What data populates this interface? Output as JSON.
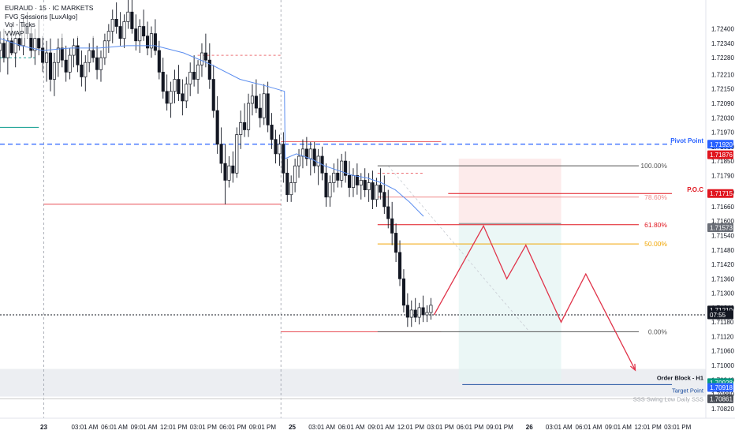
{
  "legend": {
    "symbol": "EURAUD · 15 · IC MARKETS",
    "indicators": [
      "FVG Sessions [LuxAlgo]",
      "Vol - Ticks",
      "VWAP"
    ]
  },
  "chart_data": {
    "type": "candlestick",
    "ylim": [
      1.7078,
      1.7252
    ],
    "xlim": [
      0,
      100
    ],
    "price_ticks": [
      "1.72400",
      "1.72340",
      "1.72280",
      "1.72210",
      "1.72150",
      "1.72090",
      "1.72030",
      "1.71970",
      "1.71910",
      "1.71850",
      "1.71790",
      "1.71720",
      "1.71660",
      "1.71600",
      "1.71540",
      "1.71480",
      "1.71420",
      "1.71360",
      "1.71300",
      "1.71240",
      "1.71180",
      "1.71120",
      "1.71060",
      "1.71000",
      "1.70940",
      "1.70880",
      "1.70820"
    ],
    "time_labels": [
      {
        "x": 6.2,
        "label": "23",
        "bold": true
      },
      {
        "x": 12,
        "label": "03:01 AM"
      },
      {
        "x": 16.2,
        "label": "06:01 AM"
      },
      {
        "x": 20.4,
        "label": "09:01 AM"
      },
      {
        "x": 24.6,
        "label": "12:01 PM"
      },
      {
        "x": 28.8,
        "label": "03:01 PM"
      },
      {
        "x": 33,
        "label": "06:01 PM"
      },
      {
        "x": 37.2,
        "label": "09:01 PM"
      },
      {
        "x": 41.4,
        "label": "25",
        "bold": true
      },
      {
        "x": 45.6,
        "label": "03:01 AM"
      },
      {
        "x": 49.8,
        "label": "06:01 AM"
      },
      {
        "x": 54,
        "label": "09:01 AM"
      },
      {
        "x": 58.2,
        "label": "12:01 PM"
      },
      {
        "x": 62.4,
        "label": "03:01 PM"
      },
      {
        "x": 66.6,
        "label": "06:01 PM"
      },
      {
        "x": 70.8,
        "label": "09:01 PM"
      },
      {
        "x": 75,
        "label": "26",
        "bold": true
      },
      {
        "x": 79.2,
        "label": "03:01 AM"
      },
      {
        "x": 83.4,
        "label": "06:01 AM"
      },
      {
        "x": 87.6,
        "label": "09:01 AM"
      },
      {
        "x": 91.8,
        "label": "12:01 PM"
      },
      {
        "x": 96,
        "label": "03:01 PM"
      }
    ],
    "candles": [
      [
        0,
        1.7231,
        1.7239,
        1.7222,
        1.7234
      ],
      [
        0.55,
        1.7234,
        1.724,
        1.7226,
        1.7228
      ],
      [
        1.1,
        1.7228,
        1.7238,
        1.7221,
        1.7235
      ],
      [
        1.65,
        1.7235,
        1.7241,
        1.7229,
        1.723
      ],
      [
        2.2,
        1.723,
        1.7239,
        1.7224,
        1.7236
      ],
      [
        2.75,
        1.7236,
        1.7244,
        1.7231,
        1.7233
      ],
      [
        3.3,
        1.7233,
        1.7245,
        1.7229,
        1.7241
      ],
      [
        3.85,
        1.7241,
        1.7247,
        1.7236,
        1.7238
      ],
      [
        4.4,
        1.7238,
        1.7242,
        1.7228,
        1.7231
      ],
      [
        4.95,
        1.7231,
        1.724,
        1.7225,
        1.7236
      ],
      [
        5.5,
        1.7236,
        1.7244,
        1.7229,
        1.7232
      ],
      [
        6.05,
        1.7232,
        1.7237,
        1.7222,
        1.7226
      ],
      [
        6.6,
        1.7226,
        1.7235,
        1.7218,
        1.723
      ],
      [
        7.15,
        1.723,
        1.7236,
        1.7214,
        1.7219
      ],
      [
        7.7,
        1.7219,
        1.723,
        1.7212,
        1.7226
      ],
      [
        8.25,
        1.7226,
        1.7236,
        1.722,
        1.7232
      ],
      [
        8.8,
        1.7232,
        1.7238,
        1.7224,
        1.7227
      ],
      [
        9.35,
        1.7227,
        1.7233,
        1.7218,
        1.7222
      ],
      [
        9.9,
        1.7222,
        1.7232,
        1.7219,
        1.7229
      ],
      [
        10.45,
        1.7229,
        1.7236,
        1.7224,
        1.7233
      ],
      [
        11,
        1.7233,
        1.7237,
        1.7222,
        1.7225
      ],
      [
        11.55,
        1.7225,
        1.7231,
        1.7216,
        1.722
      ],
      [
        12.1,
        1.722,
        1.7229,
        1.7214,
        1.7226
      ],
      [
        12.65,
        1.7226,
        1.7234,
        1.7222,
        1.7231
      ],
      [
        13.2,
        1.7231,
        1.7237,
        1.7226,
        1.7228
      ],
      [
        13.75,
        1.7228,
        1.7233,
        1.7219,
        1.7223
      ],
      [
        14.3,
        1.7223,
        1.7231,
        1.7218,
        1.7228
      ],
      [
        14.85,
        1.7228,
        1.7238,
        1.7225,
        1.7235
      ],
      [
        15.4,
        1.7235,
        1.7242,
        1.723,
        1.7239
      ],
      [
        15.95,
        1.7239,
        1.7248,
        1.7234,
        1.7244
      ],
      [
        16.5,
        1.7244,
        1.7251,
        1.7238,
        1.7241
      ],
      [
        17.05,
        1.7241,
        1.7247,
        1.7233,
        1.7236
      ],
      [
        17.6,
        1.7236,
        1.7246,
        1.7232,
        1.7243
      ],
      [
        18.15,
        1.7243,
        1.7252,
        1.724,
        1.7247
      ],
      [
        18.7,
        1.7247,
        1.7252,
        1.7238,
        1.724
      ],
      [
        19.25,
        1.724,
        1.7246,
        1.7231,
        1.7235
      ],
      [
        19.8,
        1.7235,
        1.7244,
        1.723,
        1.7241
      ],
      [
        20.35,
        1.7241,
        1.7248,
        1.7235,
        1.7237
      ],
      [
        20.9,
        1.7237,
        1.7243,
        1.7229,
        1.7232
      ],
      [
        21.45,
        1.7232,
        1.7241,
        1.7228,
        1.7238
      ],
      [
        22,
        1.7238,
        1.7244,
        1.7229,
        1.7231
      ],
      [
        22.55,
        1.7231,
        1.7235,
        1.7219,
        1.7222
      ],
      [
        23.1,
        1.7222,
        1.7228,
        1.7211,
        1.7214
      ],
      [
        23.65,
        1.7214,
        1.7221,
        1.7206,
        1.7209
      ],
      [
        24.2,
        1.7209,
        1.7218,
        1.7203,
        1.7214
      ],
      [
        24.75,
        1.7214,
        1.7223,
        1.7209,
        1.7219
      ],
      [
        25.3,
        1.7219,
        1.7225,
        1.721,
        1.7213
      ],
      [
        25.85,
        1.7213,
        1.7219,
        1.7204,
        1.721
      ],
      [
        26.4,
        1.721,
        1.722,
        1.7207,
        1.7217
      ],
      [
        26.95,
        1.7217,
        1.7226,
        1.7212,
        1.7222
      ],
      [
        27.5,
        1.7222,
        1.7229,
        1.7216,
        1.7219
      ],
      [
        28.05,
        1.7219,
        1.7227,
        1.7213,
        1.7225
      ],
      [
        28.6,
        1.7225,
        1.7234,
        1.722,
        1.723
      ],
      [
        29.15,
        1.723,
        1.7238,
        1.7224,
        1.7227
      ],
      [
        29.7,
        1.7227,
        1.7234,
        1.7215,
        1.7219
      ],
      [
        30.25,
        1.7219,
        1.7225,
        1.7203,
        1.7206
      ],
      [
        30.8,
        1.7206,
        1.7212,
        1.7188,
        1.7192
      ],
      [
        31.35,
        1.7192,
        1.7199,
        1.718,
        1.7184
      ],
      [
        31.9,
        1.7184,
        1.7192,
        1.7167,
        1.7177
      ],
      [
        32.45,
        1.7177,
        1.7187,
        1.7174,
        1.7183
      ],
      [
        33,
        1.7183,
        1.7189,
        1.7176,
        1.718
      ],
      [
        33.55,
        1.718,
        1.7199,
        1.7178,
        1.7196
      ],
      [
        34.1,
        1.7196,
        1.7206,
        1.719,
        1.7201
      ],
      [
        34.65,
        1.7201,
        1.7209,
        1.7195,
        1.7198
      ],
      [
        35.2,
        1.7198,
        1.7213,
        1.7195,
        1.7209
      ],
      [
        35.75,
        1.7209,
        1.7217,
        1.7204,
        1.7212
      ],
      [
        36.3,
        1.7212,
        1.7219,
        1.7205,
        1.7207
      ],
      [
        36.85,
        1.7207,
        1.7213,
        1.7199,
        1.7203
      ],
      [
        37.4,
        1.7203,
        1.7217,
        1.72,
        1.7213
      ],
      [
        37.95,
        1.7213,
        1.7218,
        1.7197,
        1.72
      ],
      [
        38.5,
        1.72,
        1.7205,
        1.719,
        1.7194
      ],
      [
        39.05,
        1.7194,
        1.7198,
        1.7184,
        1.7188
      ],
      [
        39.6,
        1.7188,
        1.7196,
        1.7183,
        1.7192
      ],
      [
        40.15,
        1.7192,
        1.7197,
        1.7176,
        1.718
      ],
      [
        40.7,
        1.718,
        1.7186,
        1.7168,
        1.7171
      ],
      [
        41.25,
        1.7171,
        1.7179,
        1.7168,
        1.7176
      ],
      [
        41.8,
        1.7176,
        1.7186,
        1.7172,
        1.7183
      ],
      [
        42.35,
        1.7183,
        1.719,
        1.7178,
        1.7187
      ],
      [
        42.9,
        1.7187,
        1.7194,
        1.7182,
        1.719
      ],
      [
        43.45,
        1.719,
        1.7195,
        1.7183,
        1.7186
      ],
      [
        44,
        1.7186,
        1.7193,
        1.7179,
        1.719
      ],
      [
        44.55,
        1.719,
        1.7193,
        1.718,
        1.7183
      ],
      [
        45.1,
        1.7183,
        1.719,
        1.7175,
        1.7187
      ],
      [
        45.65,
        1.7187,
        1.7191,
        1.7177,
        1.718
      ],
      [
        46.2,
        1.718,
        1.7184,
        1.7166,
        1.717
      ],
      [
        46.75,
        1.717,
        1.7179,
        1.7166,
        1.7176
      ],
      [
        47.3,
        1.7176,
        1.7184,
        1.7172,
        1.718
      ],
      [
        47.85,
        1.718,
        1.7186,
        1.7174,
        1.7177
      ],
      [
        48.4,
        1.7177,
        1.7188,
        1.7174,
        1.7185
      ],
      [
        48.95,
        1.7185,
        1.7189,
        1.7176,
        1.7179
      ],
      [
        49.5,
        1.7179,
        1.7185,
        1.717,
        1.7174
      ],
      [
        50.05,
        1.7174,
        1.7182,
        1.717,
        1.7179
      ],
      [
        50.6,
        1.7179,
        1.7184,
        1.7171,
        1.7175
      ],
      [
        51.15,
        1.7175,
        1.718,
        1.7169,
        1.7177
      ],
      [
        51.7,
        1.7177,
        1.7182,
        1.717,
        1.7173
      ],
      [
        52.25,
        1.7173,
        1.718,
        1.7168,
        1.7176
      ],
      [
        52.8,
        1.7176,
        1.7181,
        1.7165,
        1.7169
      ],
      [
        53.35,
        1.7169,
        1.7178,
        1.7166,
        1.7175
      ],
      [
        53.9,
        1.7175,
        1.7182,
        1.7169,
        1.7172
      ],
      [
        54.45,
        1.7172,
        1.7179,
        1.7163,
        1.7166
      ],
      [
        55,
        1.7166,
        1.7173,
        1.7157,
        1.7161
      ],
      [
        55.55,
        1.7161,
        1.7168,
        1.715,
        1.7155
      ],
      [
        56.1,
        1.7155,
        1.7159,
        1.7143,
        1.7147
      ],
      [
        56.65,
        1.7147,
        1.7152,
        1.7133,
        1.7136
      ],
      [
        57.2,
        1.7136,
        1.714,
        1.7122,
        1.7125
      ],
      [
        57.75,
        1.7125,
        1.713,
        1.7116,
        1.712
      ],
      [
        58.3,
        1.712,
        1.7127,
        1.7116,
        1.7123
      ],
      [
        58.85,
        1.7123,
        1.7128,
        1.7118,
        1.712
      ],
      [
        59.4,
        1.712,
        1.7126,
        1.7117,
        1.7124
      ],
      [
        59.95,
        1.7124,
        1.7129,
        1.7118,
        1.7121
      ],
      [
        60.5,
        1.7121,
        1.7125,
        1.7118,
        1.7122
      ],
      [
        61.05,
        1.7122,
        1.7128,
        1.7119,
        1.7125
      ]
    ],
    "vwap": [
      [
        0,
        1.7236
      ],
      [
        3,
        1.7233
      ],
      [
        6,
        1.7231
      ],
      [
        10,
        1.7232
      ],
      [
        14,
        1.7232
      ],
      [
        18,
        1.7233
      ],
      [
        22,
        1.7233
      ],
      [
        26,
        1.723
      ],
      [
        30,
        1.7225
      ],
      [
        34,
        1.7219
      ],
      [
        38,
        1.7216
      ],
      [
        40.3,
        1.7214
      ],
      [
        40.4,
        1.7186
      ],
      [
        42,
        1.7188
      ],
      [
        44,
        1.7186
      ],
      [
        46,
        1.7183
      ],
      [
        48,
        1.7181
      ],
      [
        50,
        1.7179
      ],
      [
        52,
        1.7178
      ],
      [
        54,
        1.7176
      ],
      [
        56,
        1.7173
      ],
      [
        58,
        1.7168
      ],
      [
        60,
        1.7162
      ]
    ],
    "levels": [
      {
        "name": "pivot-point",
        "label": "Pivot Point",
        "price": 1.7192,
        "tag": "1.71920",
        "color": "#2962ff",
        "dash": "6,4",
        "x1": 0,
        "x2": 95.2
      },
      {
        "name": "poc",
        "label": "P.O.C",
        "price": 1.71715,
        "tag": "1.71715",
        "color": "#e0161f",
        "dash": "",
        "x1": 63.5,
        "x2": 95.2
      },
      {
        "name": "fib-100",
        "label": "100.00%",
        "price": 1.7183,
        "color": "#555555",
        "dash": "",
        "x1": 53.5,
        "x2": 90.5
      },
      {
        "name": "fib-786",
        "label": "78.60%",
        "price": 1.717,
        "color": "#f08a8a",
        "dash": "",
        "x1": 53.5,
        "x2": 90.5
      },
      {
        "name": "fib-618",
        "label": "61.80%",
        "price": 1.71585,
        "color": "#e0161f",
        "dash": "",
        "x1": 53.5,
        "x2": 90.5
      },
      {
        "name": "fib-50",
        "label": "50.00%",
        "price": 1.71505,
        "color": "#f0a500",
        "dash": "",
        "x1": 53.5,
        "x2": 90.5
      },
      {
        "name": "fib-0",
        "label": "0.00%",
        "price": 1.7114,
        "color": "#555555",
        "dash": "",
        "x1": 53.5,
        "x2": 90.5
      },
      {
        "name": "target-point",
        "label": "Target Point",
        "price": 1.7092,
        "color": "#1e4fa0",
        "dash": "",
        "x1": 65.5,
        "x2": 95.2
      },
      {
        "name": "swing-low",
        "label": "SSS  Swing Low  Daily SSS",
        "price": 1.70861,
        "tag": "1.70861",
        "color": "#cccccc",
        "dash": "",
        "x1": 0,
        "x2": 95.2
      }
    ],
    "current_price": {
      "price": 1.7121,
      "tag": "07:55",
      "countdown": "1.71210"
    },
    "order_block": {
      "label": "Order Block - H1",
      "tag": "1.70928",
      "target_tag": "1.70918"
    },
    "projection": [
      [
        61.5,
        1.7121
      ],
      [
        68.5,
        1.7158
      ],
      [
        71.8,
        1.7136
      ],
      [
        74.5,
        1.715
      ],
      [
        79.5,
        1.7118
      ],
      [
        83,
        1.7138
      ],
      [
        90,
        1.7098
      ]
    ]
  }
}
